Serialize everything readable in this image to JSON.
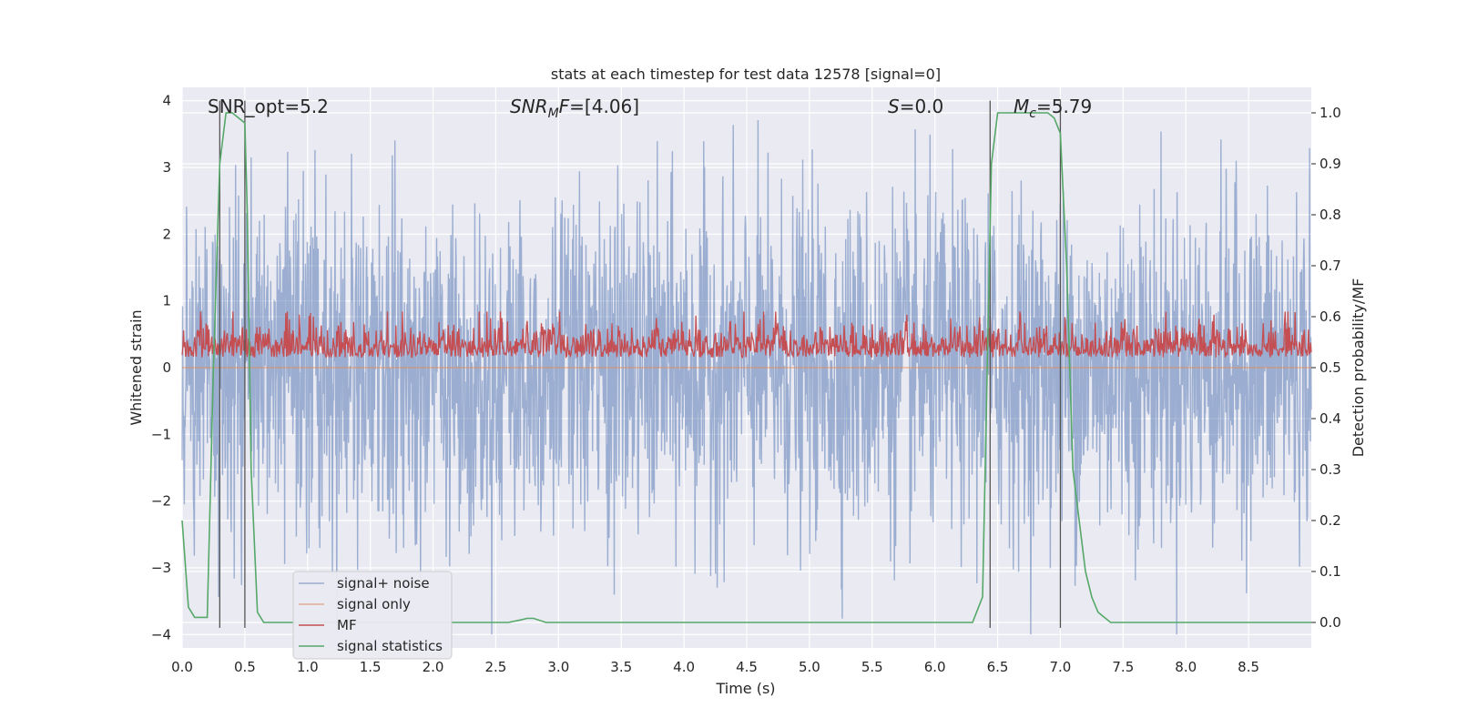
{
  "chart_data": {
    "type": "line",
    "title": "stats at each timestep for test data 12578 [signal=0]",
    "xlabel": "Time (s)",
    "ylabel": "Whitened strain",
    "y2label": "Detection probability/MF",
    "xlim": [
      0,
      9.0
    ],
    "ylim": [
      -4.2,
      4.2
    ],
    "y2lim": [
      -0.05,
      1.05
    ],
    "xticks": [
      0.0,
      0.5,
      1.0,
      1.5,
      2.0,
      2.5,
      3.0,
      3.5,
      4.0,
      4.5,
      5.0,
      5.5,
      6.0,
      6.5,
      7.0,
      7.5,
      8.0,
      8.5
    ],
    "xtick_labels": [
      "0.0",
      "0.5",
      "1.0",
      "1.5",
      "2.0",
      "2.5",
      "3.0",
      "3.5",
      "4.0",
      "4.5",
      "5.0",
      "5.5",
      "6.0",
      "6.5",
      "7.0",
      "7.5",
      "8.0",
      "8.5"
    ],
    "yticks": [
      -4,
      -3,
      -2,
      -1,
      0,
      1,
      2,
      3,
      4
    ],
    "ytick_labels": [
      "−4",
      "−3",
      "−2",
      "−1",
      "0",
      "1",
      "2",
      "3",
      "4"
    ],
    "y2ticks": [
      0.0,
      0.1,
      0.2,
      0.3,
      0.4,
      0.5,
      0.6,
      0.7,
      0.8,
      0.9,
      1.0
    ],
    "y2tick_labels": [
      "0.0",
      "0.1",
      "0.2",
      "0.3",
      "0.4",
      "0.5",
      "0.6",
      "0.7",
      "0.8",
      "0.9",
      "1.0"
    ],
    "grid": true,
    "legend_position": "lower-left",
    "annotations": [
      "SNR_opt=5.2",
      "SNR_MF=[4.06]",
      "S=0.0",
      "M_c=5.79"
    ],
    "vertical_lines": [
      0.3,
      0.5,
      6.44,
      7.0
    ],
    "series": [
      {
        "name": "signal+ noise",
        "axis": "left",
        "color": "#4c72b0",
        "description": "whitened noise, roughly Gaussian, amplitude within about ±4",
        "noise_amplitude": 1.0,
        "peak_range": [
          -4.0,
          4.0
        ]
      },
      {
        "name": "signal only",
        "axis": "left",
        "color": "#dd8452",
        "values_note": "flat at zero"
      },
      {
        "name": "MF",
        "axis": "right",
        "color": "#c44e52",
        "baseline": 0.5,
        "range": [
          0.49,
          0.61
        ]
      },
      {
        "name": "signal statistics",
        "axis": "right",
        "color": "#55a868",
        "x": [
          0.0,
          0.05,
          0.1,
          0.15,
          0.2,
          0.25,
          0.3,
          0.35,
          0.4,
          0.45,
          0.5,
          0.52,
          0.55,
          0.6,
          0.65,
          1.0,
          2.0,
          2.2,
          2.5,
          2.6,
          2.7,
          2.75,
          2.8,
          2.9,
          3.0,
          4.0,
          5.0,
          6.0,
          6.3,
          6.38,
          6.45,
          6.5,
          6.55,
          6.6,
          6.7,
          6.8,
          6.9,
          6.95,
          7.0,
          7.05,
          7.1,
          7.15,
          7.2,
          7.25,
          7.3,
          7.35,
          7.4,
          7.5,
          8.0,
          8.5,
          9.0
        ],
        "y": [
          0.2,
          0.03,
          0.01,
          0.01,
          0.01,
          0.5,
          0.9,
          1.0,
          1.0,
          0.99,
          0.98,
          0.8,
          0.3,
          0.02,
          0.0,
          0.0,
          0.0,
          0.0,
          0.0,
          0.0,
          0.005,
          0.008,
          0.008,
          0.0,
          0.0,
          0.0,
          0.0,
          0.0,
          0.0,
          0.05,
          0.9,
          1.0,
          1.0,
          1.0,
          1.0,
          1.0,
          1.0,
          0.99,
          0.96,
          0.7,
          0.3,
          0.2,
          0.1,
          0.05,
          0.02,
          0.01,
          0.0,
          0.0,
          0.0,
          0.0,
          0.0
        ]
      }
    ]
  }
}
